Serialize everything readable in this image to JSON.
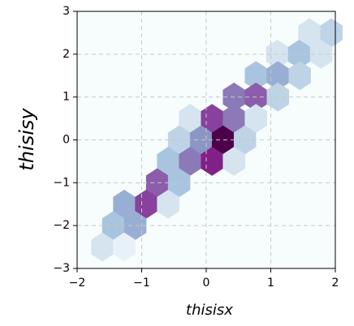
{
  "chart_data": {
    "type": "hexbin",
    "xlabel": "thisisx",
    "ylabel": "thisisy",
    "x": [
      1.6,
      1.94,
      1.1,
      1.44,
      1.78,
      0.77,
      1.11,
      1.45,
      0.43,
      0.77,
      1.11,
      -0.25,
      0.09,
      0.43,
      0.77,
      -0.42,
      -0.08,
      0.26,
      0.6,
      -0.59,
      -0.25,
      0.09,
      0.43,
      -0.76,
      -0.42,
      -1.27,
      -0.93,
      -0.59,
      -1.44,
      -1.1,
      -1.61,
      -1.27
    ],
    "y": [
      2.5,
      2.5,
      2.0,
      2.0,
      2.0,
      1.5,
      1.5,
      1.5,
      1.0,
      1.0,
      1.0,
      0.5,
      0.5,
      0.5,
      0.5,
      0.0,
      0.0,
      0.0,
      0.0,
      -0.5,
      -0.5,
      -0.5,
      -0.5,
      -1.0,
      -1.0,
      -1.5,
      -1.5,
      -1.5,
      -2.0,
      -2.0,
      -2.5,
      -2.5
    ],
    "values": [
      2,
      3,
      2,
      4,
      2,
      4,
      5,
      3,
      7,
      8,
      3,
      2,
      9,
      7,
      2,
      3,
      6,
      12,
      3,
      4,
      7,
      10,
      2,
      8,
      4,
      5,
      9,
      2,
      4,
      5,
      2,
      1
    ],
    "colormap": [
      "#f7fcfd",
      "#e0ecf4",
      "#bfd3e6",
      "#9ebcda",
      "#8c96c6",
      "#8c6bb1",
      "#88419d",
      "#810f7c",
      "#4d004b"
    ],
    "xlim": [
      -2,
      2
    ],
    "ylim": [
      -3,
      3
    ],
    "xticks": [
      {
        "value": -2,
        "label": "−2"
      },
      {
        "value": -1,
        "label": "−1"
      },
      0,
      1,
      2
    ],
    "yticks": [
      {
        "value": -3,
        "label": "−3"
      },
      {
        "value": -2,
        "label": "−2"
      },
      {
        "value": -1,
        "label": "−1"
      },
      0,
      1,
      2,
      3
    ],
    "grid": true
  }
}
